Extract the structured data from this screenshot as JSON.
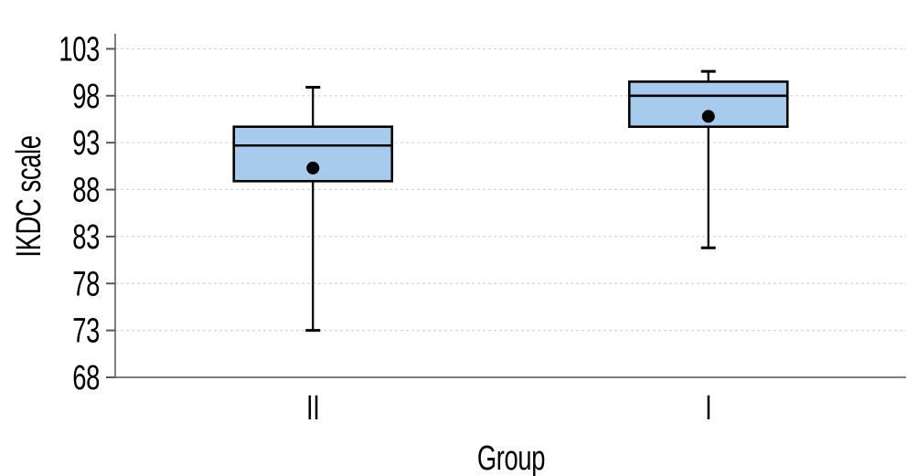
{
  "chart_data": {
    "type": "box",
    "title": "",
    "xlabel": "Group",
    "ylabel": "IKDC scale",
    "categories": [
      "II",
      "I"
    ],
    "yticks": [
      68,
      73,
      78,
      83,
      88,
      93,
      98,
      103
    ],
    "ylim": [
      68,
      104.6
    ],
    "grid": "horizontal-dashed-light-gray",
    "legend": null,
    "series": [
      {
        "name": "II",
        "min": 73.0,
        "q1": 88.9,
        "median": 92.7,
        "q3": 94.7,
        "max": 98.9,
        "mean": 90.3
      },
      {
        "name": "I",
        "min": 81.8,
        "q1": 94.7,
        "median": 98.0,
        "q3": 99.5,
        "max": 100.6,
        "mean": 95.8
      }
    ],
    "colors": {
      "box_fill": "#a6cbec",
      "box_border": "#000000",
      "whisker": "#000000",
      "median": "#000000",
      "mean_dot": "#000000",
      "axis_line": "#7f7f7f",
      "tick_mark": "#595959",
      "gridline": "#d6d6d6",
      "text": "#000000",
      "background": "#ffffff"
    }
  }
}
